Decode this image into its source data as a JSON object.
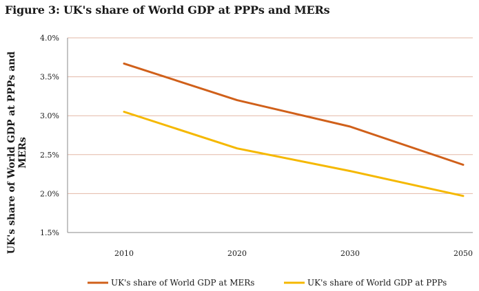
{
  "title": "Figure 3: UK's share of World GDP at PPPs and MERs",
  "chart_data": {
    "type": "line",
    "title": "Figure 3: UK's share of World GDP at PPPs and MERs",
    "xlabel": "",
    "ylabel": "UK's share of World GDP at PPPs and MERs",
    "categories": [
      "2010",
      "2020",
      "2030",
      "2050"
    ],
    "ylim": [
      1.5,
      4.0
    ],
    "yticks": [
      "1.5%",
      "2.0%",
      "2.5%",
      "3.0%",
      "3.5%",
      "4.0%"
    ],
    "grid": true,
    "legend_position": "bottom",
    "series": [
      {
        "name": "UK's share of World GDP at MERs",
        "color": "#d0601a",
        "values": [
          3.67,
          3.2,
          2.86,
          2.37
        ]
      },
      {
        "name": "UK's share of World GDP at PPPs",
        "color": "#f5b800",
        "values": [
          3.05,
          2.58,
          2.29,
          1.97
        ]
      }
    ]
  }
}
